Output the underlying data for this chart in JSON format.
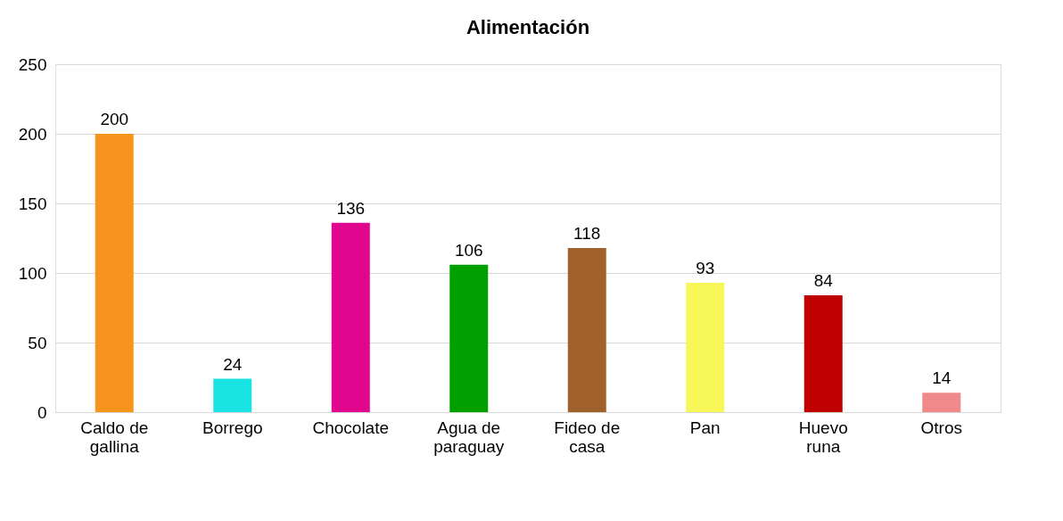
{
  "chart_data": {
    "type": "bar",
    "title": "Alimentación",
    "categories": [
      "Caldo de gallina",
      "Borrego",
      "Chocolate",
      "Agua de paraguay",
      "Fideo de casa",
      "Pan",
      "Huevo runa",
      "Otros"
    ],
    "values": [
      200,
      24,
      136,
      106,
      118,
      93,
      84,
      14
    ],
    "colors": [
      "#f7941d",
      "#19e3e3",
      "#e0068e",
      "#00a000",
      "#a0622a",
      "#f7f75a",
      "#c00000",
      "#f08a8a"
    ],
    "ylim": [
      0,
      250
    ],
    "yticks": [
      0,
      50,
      100,
      150,
      200,
      250
    ],
    "grid": "y",
    "data_labels": true
  }
}
